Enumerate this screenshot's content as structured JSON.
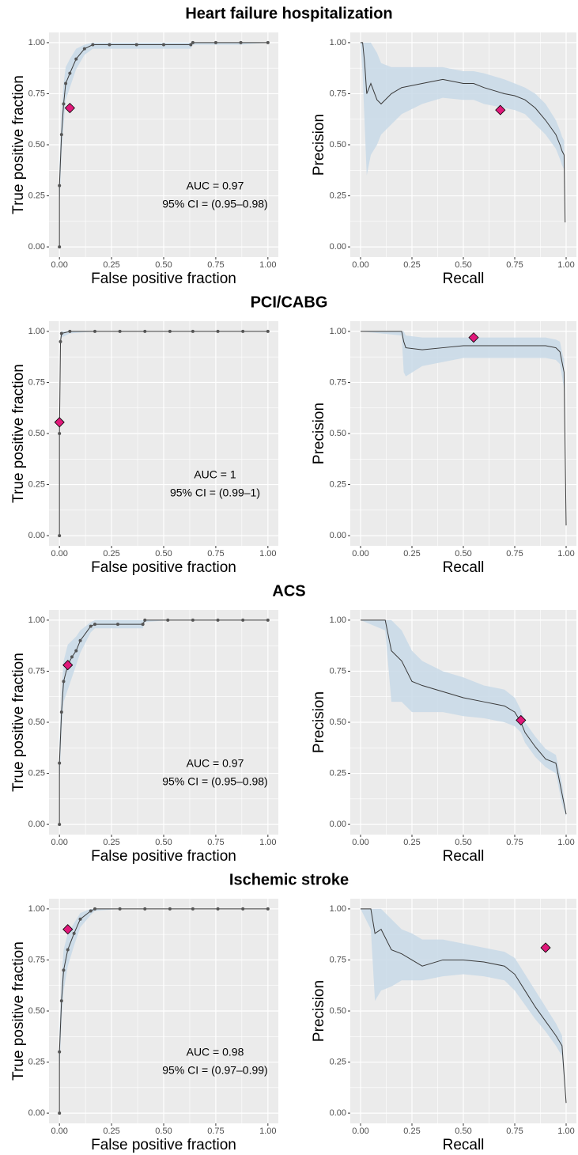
{
  "chart_data": [
    {
      "type": "line",
      "title": "Heart failure hospitalization",
      "x_label": "False positive fraction",
      "y_label": "True positive fraction",
      "xlim": [
        -0.05,
        1.05
      ],
      "ylim": [
        -0.05,
        1.05
      ],
      "xticks": [
        {
          "value": 0,
          "label": "0.00"
        },
        {
          "value": 0.25,
          "label": "0.25"
        },
        {
          "value": 0.5,
          "label": "0.50"
        },
        {
          "value": 0.75,
          "label": "0.75"
        },
        {
          "value": 1,
          "label": "1.00"
        }
      ],
      "yticks": [
        {
          "value": 0,
          "label": "0.00"
        },
        {
          "value": 0.25,
          "label": "0.25"
        },
        {
          "value": 0.5,
          "label": "0.50"
        },
        {
          "value": 0.75,
          "label": "0.75"
        },
        {
          "value": 1,
          "label": "1.00"
        }
      ],
      "grid": true,
      "points": true,
      "color": "#3a3a3a",
      "band_color": "#c8d9e7",
      "point_color": "#e0197a",
      "x": [
        0,
        0,
        0.01,
        0.02,
        0.03,
        0.05,
        0.08,
        0.12,
        0.16,
        0.24,
        0.37,
        0.5,
        0.63,
        0.64,
        0.75,
        0.87,
        1
      ],
      "values": [
        0,
        0.3,
        0.55,
        0.7,
        0.8,
        0.85,
        0.92,
        0.97,
        0.99,
        0.99,
        0.99,
        0.99,
        0.99,
        1,
        1,
        1,
        1
      ],
      "lower": [
        0,
        0.2,
        0.45,
        0.6,
        0.72,
        0.78,
        0.87,
        0.94,
        0.97,
        0.97,
        0.97,
        0.97,
        0.97,
        0.99,
        0.99,
        0.99,
        1
      ],
      "upper": [
        0,
        0.4,
        0.65,
        0.8,
        0.88,
        0.92,
        0.97,
        0.99,
        1,
        1,
        1,
        1,
        1,
        1,
        1,
        1,
        1
      ],
      "point": {
        "x": 0.05,
        "y": 0.68
      },
      "annotations": [
        "AUC = 0.97",
        "95% CI = (0.95–0.98)"
      ]
    },
    {
      "type": "line",
      "x_label": "Recall",
      "y_label": "Precision",
      "xlim": [
        -0.05,
        1.05
      ],
      "ylim": [
        -0.05,
        1.05
      ],
      "xticks": [
        {
          "value": 0,
          "label": "0.00"
        },
        {
          "value": 0.25,
          "label": "0.25"
        },
        {
          "value": 0.5,
          "label": "0.50"
        },
        {
          "value": 0.75,
          "label": "0.75"
        },
        {
          "value": 1,
          "label": "1.00"
        }
      ],
      "yticks": [
        {
          "value": 0,
          "label": "0.00"
        },
        {
          "value": 0.25,
          "label": "0.25"
        },
        {
          "value": 0.5,
          "label": "0.50"
        },
        {
          "value": 0.75,
          "label": "0.75"
        },
        {
          "value": 1,
          "label": "1.00"
        }
      ],
      "grid": true,
      "points": false,
      "color": "#3a3a3a",
      "band_color": "#c8d9e7",
      "point_color": "#e0197a",
      "x": [
        0,
        0.01,
        0.02,
        0.03,
        0.05,
        0.08,
        0.1,
        0.15,
        0.2,
        0.3,
        0.4,
        0.5,
        0.55,
        0.6,
        0.7,
        0.75,
        0.8,
        0.85,
        0.9,
        0.95,
        0.97,
        0.98,
        0.99,
        0.995
      ],
      "values": [
        1,
        1,
        0.9,
        0.75,
        0.8,
        0.72,
        0.7,
        0.75,
        0.78,
        0.8,
        0.82,
        0.8,
        0.8,
        0.78,
        0.75,
        0.74,
        0.72,
        0.68,
        0.62,
        0.55,
        0.5,
        0.47,
        0.45,
        0.12
      ],
      "lower": [
        1,
        0.85,
        0.6,
        0.35,
        0.45,
        0.5,
        0.55,
        0.6,
        0.65,
        0.7,
        0.73,
        0.72,
        0.72,
        0.7,
        0.68,
        0.67,
        0.65,
        0.6,
        0.55,
        0.48,
        0.43,
        0.4,
        0.38,
        0.1
      ],
      "upper": [
        1,
        1,
        1,
        1,
        1,
        0.95,
        0.9,
        0.88,
        0.88,
        0.88,
        0.88,
        0.86,
        0.86,
        0.85,
        0.82,
        0.8,
        0.78,
        0.75,
        0.7,
        0.62,
        0.57,
        0.54,
        0.52,
        0.15
      ],
      "point": {
        "x": 0.68,
        "y": 0.67
      }
    },
    {
      "type": "line",
      "title": "PCI/CABG",
      "x_label": "False positive fraction",
      "y_label": "True positive fraction",
      "xlim": [
        -0.05,
        1.05
      ],
      "ylim": [
        -0.05,
        1.05
      ],
      "xticks": [
        {
          "value": 0,
          "label": "0.00"
        },
        {
          "value": 0.25,
          "label": "0.25"
        },
        {
          "value": 0.5,
          "label": "0.50"
        },
        {
          "value": 0.75,
          "label": "0.75"
        },
        {
          "value": 1,
          "label": "1.00"
        }
      ],
      "yticks": [
        {
          "value": 0,
          "label": "0.00"
        },
        {
          "value": 0.25,
          "label": "0.25"
        },
        {
          "value": 0.5,
          "label": "0.50"
        },
        {
          "value": 0.75,
          "label": "0.75"
        },
        {
          "value": 1,
          "label": "1.00"
        }
      ],
      "grid": true,
      "points": true,
      "color": "#3a3a3a",
      "band_color": "#c8d9e7",
      "point_color": "#e0197a",
      "x": [
        0,
        0,
        0.005,
        0.01,
        0.05,
        0.17,
        0.29,
        0.41,
        0.53,
        0.64,
        0.76,
        0.88,
        1
      ],
      "values": [
        0,
        0.5,
        0.95,
        0.99,
        1,
        1,
        1,
        1,
        1,
        1,
        1,
        1,
        1
      ],
      "lower": [
        0,
        0.45,
        0.92,
        0.97,
        0.99,
        1,
        1,
        1,
        1,
        1,
        1,
        1,
        1
      ],
      "upper": [
        0,
        0.55,
        0.98,
        1,
        1,
        1,
        1,
        1,
        1,
        1,
        1,
        1,
        1
      ],
      "point": {
        "x": 0,
        "y": 0.555
      },
      "annotations": [
        "AUC = 1",
        "95% CI = (0.99–1)"
      ]
    },
    {
      "type": "line",
      "x_label": "Recall",
      "y_label": "Precision",
      "xlim": [
        -0.05,
        1.05
      ],
      "ylim": [
        -0.05,
        1.05
      ],
      "xticks": [
        {
          "value": 0,
          "label": "0.00"
        },
        {
          "value": 0.25,
          "label": "0.25"
        },
        {
          "value": 0.5,
          "label": "0.50"
        },
        {
          "value": 0.75,
          "label": "0.75"
        },
        {
          "value": 1,
          "label": "1.00"
        }
      ],
      "yticks": [
        {
          "value": 0,
          "label": "0.00"
        },
        {
          "value": 0.25,
          "label": "0.25"
        },
        {
          "value": 0.5,
          "label": "0.50"
        },
        {
          "value": 0.75,
          "label": "0.75"
        },
        {
          "value": 1,
          "label": "1.00"
        }
      ],
      "grid": true,
      "points": false,
      "color": "#3a3a3a",
      "band_color": "#c8d9e7",
      "point_color": "#e0197a",
      "x": [
        0,
        0.2,
        0.21,
        0.22,
        0.3,
        0.4,
        0.5,
        0.6,
        0.7,
        0.8,
        0.9,
        0.95,
        0.97,
        0.98,
        0.99,
        1
      ],
      "values": [
        1,
        1,
        0.95,
        0.92,
        0.91,
        0.92,
        0.93,
        0.93,
        0.93,
        0.93,
        0.93,
        0.92,
        0.9,
        0.85,
        0.8,
        0.05
      ],
      "lower": [
        1,
        0.98,
        0.8,
        0.78,
        0.83,
        0.85,
        0.87,
        0.87,
        0.87,
        0.87,
        0.87,
        0.86,
        0.84,
        0.78,
        0.72,
        0.04
      ],
      "upper": [
        1,
        1,
        1,
        0.98,
        0.97,
        0.97,
        0.97,
        0.97,
        0.97,
        0.97,
        0.97,
        0.96,
        0.95,
        0.9,
        0.86,
        0.06
      ],
      "point": {
        "x": 0.55,
        "y": 0.97
      }
    },
    {
      "type": "line",
      "title": "ACS",
      "x_label": "False positive fraction",
      "y_label": "True positive fraction",
      "xlim": [
        -0.05,
        1.05
      ],
      "ylim": [
        -0.05,
        1.05
      ],
      "xticks": [
        {
          "value": 0,
          "label": "0.00"
        },
        {
          "value": 0.25,
          "label": "0.25"
        },
        {
          "value": 0.5,
          "label": "0.50"
        },
        {
          "value": 0.75,
          "label": "0.75"
        },
        {
          "value": 1,
          "label": "1.00"
        }
      ],
      "yticks": [
        {
          "value": 0,
          "label": "0.00"
        },
        {
          "value": 0.25,
          "label": "0.25"
        },
        {
          "value": 0.5,
          "label": "0.50"
        },
        {
          "value": 0.75,
          "label": "0.75"
        },
        {
          "value": 1,
          "label": "1.00"
        }
      ],
      "grid": true,
      "points": true,
      "color": "#3a3a3a",
      "band_color": "#c8d9e7",
      "point_color": "#e0197a",
      "x": [
        0,
        0,
        0.01,
        0.02,
        0.04,
        0.06,
        0.08,
        0.1,
        0.15,
        0.17,
        0.28,
        0.4,
        0.41,
        0.52,
        0.64,
        0.76,
        0.88,
        1
      ],
      "values": [
        0,
        0.3,
        0.55,
        0.7,
        0.78,
        0.82,
        0.85,
        0.9,
        0.97,
        0.98,
        0.98,
        0.98,
        1,
        1,
        1,
        1,
        1,
        1
      ],
      "lower": [
        0,
        0.2,
        0.45,
        0.6,
        0.66,
        0.72,
        0.78,
        0.84,
        0.94,
        0.96,
        0.96,
        0.96,
        0.99,
        1,
        1,
        1,
        1,
        1
      ],
      "upper": [
        0,
        0.4,
        0.65,
        0.8,
        0.88,
        0.9,
        0.92,
        0.95,
        0.99,
        1,
        1,
        1,
        1,
        1,
        1,
        1,
        1,
        1
      ],
      "point": {
        "x": 0.04,
        "y": 0.78
      },
      "annotations": [
        "AUC = 0.97",
        "95% CI = (0.95–0.98)"
      ]
    },
    {
      "type": "line",
      "x_label": "Recall",
      "y_label": "Precision",
      "xlim": [
        -0.05,
        1.05
      ],
      "ylim": [
        -0.05,
        1.05
      ],
      "xticks": [
        {
          "value": 0,
          "label": "0.00"
        },
        {
          "value": 0.25,
          "label": "0.25"
        },
        {
          "value": 0.5,
          "label": "0.50"
        },
        {
          "value": 0.75,
          "label": "0.75"
        },
        {
          "value": 1,
          "label": "1.00"
        }
      ],
      "yticks": [
        {
          "value": 0,
          "label": "0.00"
        },
        {
          "value": 0.25,
          "label": "0.25"
        },
        {
          "value": 0.5,
          "label": "0.50"
        },
        {
          "value": 0.75,
          "label": "0.75"
        },
        {
          "value": 1,
          "label": "1.00"
        }
      ],
      "grid": true,
      "points": false,
      "color": "#3a3a3a",
      "band_color": "#c8d9e7",
      "point_color": "#e0197a",
      "x": [
        0,
        0.12,
        0.15,
        0.2,
        0.25,
        0.3,
        0.4,
        0.5,
        0.6,
        0.7,
        0.75,
        0.78,
        0.8,
        0.85,
        0.9,
        0.95,
        0.98,
        1
      ],
      "values": [
        1,
        1,
        0.85,
        0.8,
        0.7,
        0.68,
        0.65,
        0.62,
        0.6,
        0.58,
        0.55,
        0.5,
        0.45,
        0.38,
        0.32,
        0.3,
        0.15,
        0.05
      ],
      "lower": [
        1,
        0.95,
        0.6,
        0.6,
        0.55,
        0.55,
        0.55,
        0.53,
        0.52,
        0.5,
        0.48,
        0.45,
        0.4,
        0.33,
        0.28,
        0.25,
        0.1,
        0.04
      ],
      "upper": [
        1,
        1,
        1,
        0.95,
        0.85,
        0.8,
        0.75,
        0.72,
        0.68,
        0.66,
        0.62,
        0.56,
        0.5,
        0.43,
        0.37,
        0.34,
        0.2,
        0.06
      ],
      "point": {
        "x": 0.78,
        "y": 0.51
      }
    },
    {
      "type": "line",
      "title": "Ischemic stroke",
      "x_label": "False positive fraction",
      "y_label": "True positive fraction",
      "xlim": [
        -0.05,
        1.05
      ],
      "ylim": [
        -0.05,
        1.05
      ],
      "xticks": [
        {
          "value": 0,
          "label": "0.00"
        },
        {
          "value": 0.25,
          "label": "0.25"
        },
        {
          "value": 0.5,
          "label": "0.50"
        },
        {
          "value": 0.75,
          "label": "0.75"
        },
        {
          "value": 1,
          "label": "1.00"
        }
      ],
      "yticks": [
        {
          "value": 0,
          "label": "0.00"
        },
        {
          "value": 0.25,
          "label": "0.25"
        },
        {
          "value": 0.5,
          "label": "0.50"
        },
        {
          "value": 0.75,
          "label": "0.75"
        },
        {
          "value": 1,
          "label": "1.00"
        }
      ],
      "grid": true,
      "points": true,
      "color": "#3a3a3a",
      "band_color": "#c8d9e7",
      "point_color": "#e0197a",
      "x": [
        0,
        0,
        0.01,
        0.02,
        0.04,
        0.07,
        0.1,
        0.15,
        0.17,
        0.29,
        0.41,
        0.53,
        0.64,
        0.76,
        0.88,
        1
      ],
      "values": [
        0,
        0.3,
        0.55,
        0.7,
        0.8,
        0.88,
        0.95,
        0.99,
        1,
        1,
        1,
        1,
        1,
        1,
        1,
        1
      ],
      "lower": [
        0,
        0.2,
        0.45,
        0.6,
        0.72,
        0.82,
        0.91,
        0.97,
        0.99,
        1,
        1,
        1,
        1,
        1,
        1,
        1
      ],
      "upper": [
        0,
        0.4,
        0.65,
        0.8,
        0.88,
        0.93,
        0.98,
        1,
        1,
        1,
        1,
        1,
        1,
        1,
        1,
        1
      ],
      "point": {
        "x": 0.04,
        "y": 0.9
      },
      "annotations": [
        "AUC = 0.98",
        "95% CI = (0.97–0.99)"
      ]
    },
    {
      "type": "line",
      "x_label": "Recall",
      "y_label": "Precision",
      "xlim": [
        -0.05,
        1.05
      ],
      "ylim": [
        -0.05,
        1.05
      ],
      "xticks": [
        {
          "value": 0,
          "label": "0.00"
        },
        {
          "value": 0.25,
          "label": "0.25"
        },
        {
          "value": 0.5,
          "label": "0.50"
        },
        {
          "value": 0.75,
          "label": "0.75"
        },
        {
          "value": 1,
          "label": "1.00"
        }
      ],
      "yticks": [
        {
          "value": 0,
          "label": "0.00"
        },
        {
          "value": 0.25,
          "label": "0.25"
        },
        {
          "value": 0.5,
          "label": "0.50"
        },
        {
          "value": 0.75,
          "label": "0.75"
        },
        {
          "value": 1,
          "label": "1.00"
        }
      ],
      "grid": true,
      "points": false,
      "color": "#3a3a3a",
      "band_color": "#c8d9e7",
      "point_color": "#e0197a",
      "x": [
        0,
        0.05,
        0.07,
        0.1,
        0.15,
        0.2,
        0.25,
        0.3,
        0.4,
        0.5,
        0.6,
        0.7,
        0.75,
        0.8,
        0.85,
        0.9,
        0.95,
        0.98,
        1
      ],
      "values": [
        1,
        1,
        0.88,
        0.9,
        0.8,
        0.78,
        0.75,
        0.72,
        0.75,
        0.75,
        0.74,
        0.72,
        0.68,
        0.6,
        0.52,
        0.45,
        0.38,
        0.33,
        0.05
      ],
      "lower": [
        1,
        0.9,
        0.55,
        0.6,
        0.62,
        0.65,
        0.65,
        0.65,
        0.67,
        0.68,
        0.67,
        0.65,
        0.6,
        0.53,
        0.46,
        0.4,
        0.33,
        0.28,
        0.04
      ],
      "upper": [
        1,
        1,
        1,
        1,
        0.95,
        0.9,
        0.88,
        0.85,
        0.85,
        0.83,
        0.81,
        0.79,
        0.76,
        0.68,
        0.6,
        0.52,
        0.44,
        0.38,
        0.06
      ],
      "point": {
        "x": 0.9,
        "y": 0.81
      }
    }
  ]
}
